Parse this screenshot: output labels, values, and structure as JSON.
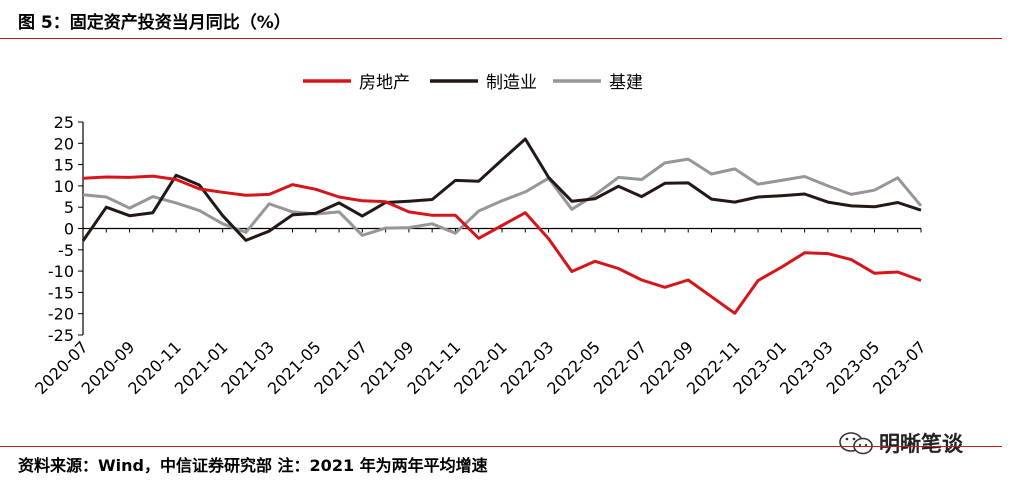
{
  "title": "图 5：固定资产投资当月同比（%）",
  "source": "资料来源：Wind，中信证券研究部 注：2021 年为两年平均增速",
  "watermark": {
    "text": "明晰笔谈"
  },
  "colors": {
    "rule": "#c8161d",
    "axis": "#000000"
  },
  "chart_data": {
    "type": "line",
    "title": "固定资产投资当月同比（%）",
    "xlabel": "",
    "ylabel": "",
    "ylim": [
      -25,
      25
    ],
    "yticks": [
      25,
      20,
      15,
      10,
      5,
      0,
      -5,
      -10,
      -15,
      -20,
      -25
    ],
    "grid": false,
    "legend_position": "top-center",
    "x": [
      "2020-07",
      "2020-08",
      "2020-09",
      "2020-10",
      "2020-11",
      "2020-12",
      "2021-01",
      "2021-02",
      "2021-03",
      "2021-04",
      "2021-05",
      "2021-06",
      "2021-07",
      "2021-08",
      "2021-09",
      "2021-10",
      "2021-11",
      "2021-12",
      "2022-01",
      "2022-02",
      "2022-03",
      "2022-04",
      "2022-05",
      "2022-06",
      "2022-07",
      "2022-08",
      "2022-09",
      "2022-10",
      "2022-11",
      "2022-12",
      "2023-01",
      "2023-02",
      "2023-03",
      "2023-04",
      "2023-05",
      "2023-06",
      "2023-07"
    ],
    "xtick_labels": [
      "2020-07",
      "2020-09",
      "2020-11",
      "2021-01",
      "2021-03",
      "2021-05",
      "2021-07",
      "2021-09",
      "2021-11",
      "2022-01",
      "2022-03",
      "2022-05",
      "2022-07",
      "2022-09",
      "2022-11",
      "2023-01",
      "2023-03",
      "2023-05",
      "2023-07"
    ],
    "series": [
      {
        "name": "房地产",
        "color": "#d7141a",
        "values": [
          11.8,
          12.1,
          12.0,
          12.3,
          11.5,
          9.3,
          8.5,
          7.8,
          8.0,
          10.3,
          9.2,
          7.4,
          6.5,
          6.3,
          3.9,
          3.1,
          3.1,
          -2.3,
          0.7,
          3.7,
          -2.4,
          -10.1,
          -7.7,
          -9.4,
          -12.1,
          -13.8,
          -12.1,
          -16.0,
          -19.9,
          -12.2,
          -9.1,
          -5.7,
          -5.9,
          -7.3,
          -10.5,
          -10.2,
          -12.2
        ]
      },
      {
        "name": "制造业",
        "color": "#231815",
        "values": [
          -2.9,
          5.0,
          3.0,
          3.7,
          12.5,
          10.2,
          3.0,
          -2.8,
          -0.6,
          3.2,
          3.6,
          6.0,
          2.9,
          6.1,
          6.4,
          6.8,
          11.3,
          11.1,
          16.1,
          21.0,
          12.0,
          6.4,
          7.0,
          9.9,
          7.5,
          10.6,
          10.7,
          6.9,
          6.2,
          7.4,
          7.7,
          8.1,
          6.2,
          5.3,
          5.1,
          6.1,
          4.3
        ]
      },
      {
        "name": "基建",
        "color": "#969696",
        "values": [
          7.9,
          7.4,
          4.8,
          7.5,
          6.0,
          4.2,
          1.1,
          -0.9,
          5.8,
          3.9,
          3.4,
          3.9,
          -1.6,
          0.1,
          0.2,
          1.1,
          -1.1,
          4.1,
          6.5,
          8.6,
          11.8,
          4.5,
          7.9,
          12.0,
          11.5,
          15.4,
          16.3,
          12.8,
          14.0,
          10.4,
          11.3,
          12.2,
          10.0,
          8.0,
          9.0,
          11.9,
          5.3
        ]
      }
    ]
  }
}
